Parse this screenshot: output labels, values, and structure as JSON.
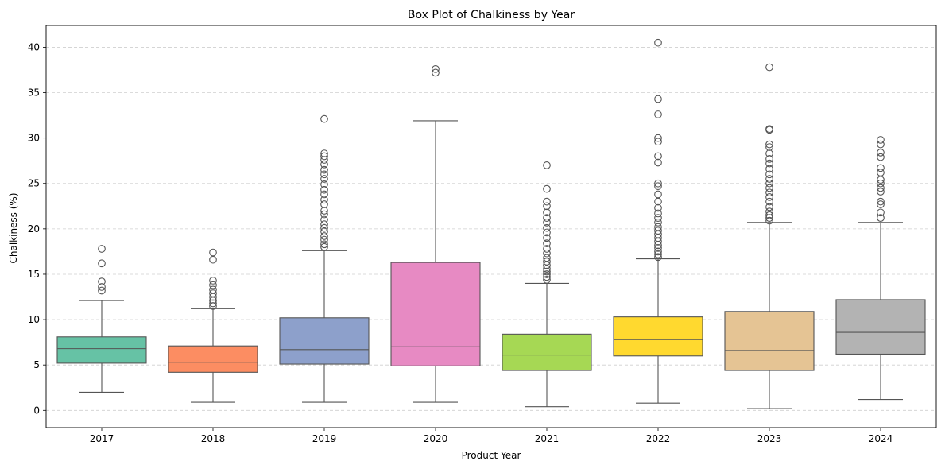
{
  "chart_data": {
    "type": "box",
    "title": "Box Plot of Chalkiness by Year",
    "xlabel": "Product Year",
    "ylabel": "Chalkiness (%)",
    "ylim": [
      -1.9,
      42.4
    ],
    "yticks": [
      0,
      5,
      10,
      15,
      20,
      25,
      30,
      35,
      40
    ],
    "grid": "y dashed",
    "categories": [
      "2017",
      "2018",
      "2019",
      "2020",
      "2021",
      "2022",
      "2023",
      "2024"
    ],
    "boxes": [
      {
        "category": "2017",
        "color": "#66c2a5",
        "whisker_low": 2.0,
        "q1": 5.2,
        "median": 6.8,
        "q3": 8.1,
        "whisker_high": 12.1,
        "outliers": [
          13.2,
          13.6,
          14.2,
          16.2,
          17.8
        ]
      },
      {
        "category": "2018",
        "color": "#fc8d62",
        "whisker_low": 0.9,
        "q1": 4.2,
        "median": 5.3,
        "q3": 7.1,
        "whisker_high": 11.2,
        "outliers": [
          11.5,
          11.8,
          12.1,
          12.5,
          12.9,
          13.3,
          13.8,
          14.3,
          16.6,
          17.4
        ]
      },
      {
        "category": "2019",
        "color": "#8da0cb",
        "whisker_low": 0.9,
        "q1": 5.1,
        "median": 6.7,
        "q3": 10.2,
        "whisker_high": 17.6,
        "outliers": [
          18.0,
          18.3,
          18.8,
          19.2,
          19.7,
          20.1,
          20.5,
          21.0,
          21.6,
          22.0,
          22.7,
          23.2,
          23.8,
          24.3,
          24.9,
          25.5,
          26.0,
          26.5,
          27.1,
          27.6,
          28.0,
          28.3,
          32.1
        ]
      },
      {
        "category": "2020",
        "color": "#e78ac3",
        "whisker_low": 0.9,
        "q1": 4.9,
        "median": 7.0,
        "q3": 16.3,
        "whisker_high": 31.9,
        "outliers": [
          37.2,
          37.6
        ]
      },
      {
        "category": "2021",
        "color": "#a6d854",
        "whisker_low": 0.4,
        "q1": 4.4,
        "median": 6.1,
        "q3": 8.4,
        "whisker_high": 14.0,
        "outliers": [
          14.4,
          14.7,
          15.0,
          15.3,
          15.6,
          16.0,
          16.4,
          16.8,
          17.3,
          17.8,
          18.4,
          19.0,
          19.6,
          20.1,
          20.7,
          21.2,
          21.8,
          22.5,
          23.0,
          24.4,
          27.0
        ]
      },
      {
        "category": "2022",
        "color": "#ffd92f",
        "whisker_low": 0.8,
        "q1": 6.0,
        "median": 7.8,
        "q3": 10.3,
        "whisker_high": 16.7,
        "outliers": [
          16.9,
          17.2,
          17.5,
          17.9,
          18.2,
          18.6,
          19.0,
          19.4,
          19.8,
          20.2,
          20.7,
          21.2,
          21.7,
          22.3,
          23.0,
          23.8,
          24.7,
          25.0,
          27.3,
          28.0,
          29.6,
          30.0,
          32.6,
          34.3,
          40.5
        ]
      },
      {
        "category": "2023",
        "color": "#e5c494",
        "whisker_low": 0.2,
        "q1": 4.4,
        "median": 6.6,
        "q3": 10.9,
        "whisker_high": 20.7,
        "outliers": [
          20.9,
          21.2,
          21.5,
          21.9,
          22.4,
          23.0,
          23.5,
          24.0,
          24.5,
          25.0,
          25.5,
          26.0,
          26.6,
          27.2,
          27.7,
          28.3,
          29.0,
          29.3,
          30.9,
          31.0,
          37.8
        ]
      },
      {
        "category": "2024",
        "color": "#b3b3b3",
        "whisker_low": 1.2,
        "q1": 6.2,
        "median": 8.6,
        "q3": 12.2,
        "whisker_high": 20.7,
        "outliers": [
          21.2,
          21.8,
          22.7,
          23.0,
          24.1,
          24.5,
          25.0,
          25.4,
          26.2,
          26.7,
          27.9,
          28.4,
          29.3,
          29.8
        ]
      }
    ]
  }
}
